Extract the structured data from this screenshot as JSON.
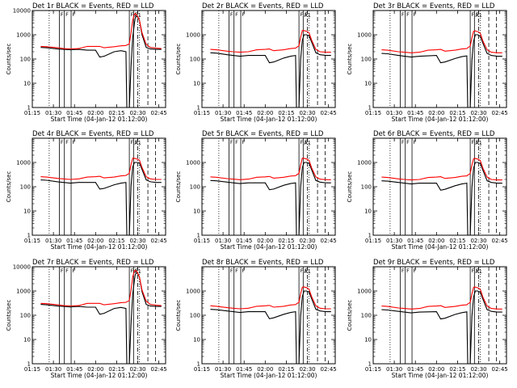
{
  "chart_data": {
    "type": "line",
    "layout": "3x3 grid",
    "common": {
      "yscale": "log",
      "ylim": [
        1,
        10000
      ],
      "xlim_hours": [
        1.25,
        2.83
      ],
      "x_ticks": [
        1.25,
        1.5,
        1.75,
        2.0,
        2.25,
        2.5,
        2.75
      ],
      "x_tick_labels": [
        "01:15",
        "01:30",
        "01:45",
        "02:00",
        "02:15",
        "02:30",
        "02:45"
      ],
      "y_ticks": [
        1,
        10,
        100,
        1000,
        10000
      ],
      "y_tick_labels_small": [
        "1",
        "10",
        "100",
        "1000"
      ],
      "y_tick_labels_big": [
        "1",
        "10",
        "100",
        "1000",
        "10000"
      ],
      "xlabel": "Start Time (04-Jan-12 01:12:00)",
      "ylabel": "Counts/sec",
      "flag_label": "F",
      "attenuator_label": "A1",
      "series_names": [
        "Events",
        "LLD"
      ],
      "series_colors": [
        "#000000",
        "#ff0000"
      ],
      "shared_x": [
        1.35,
        1.42,
        1.55,
        1.62,
        1.7,
        1.8,
        1.9,
        2.0,
        2.05,
        2.1,
        2.22,
        2.3,
        2.36,
        2.37,
        2.4,
        2.42,
        2.44,
        2.46,
        2.47,
        2.49,
        2.52,
        2.55,
        2.6,
        2.65,
        2.72,
        2.78
      ],
      "solid_markers": [
        1.57,
        1.63,
        1.71,
        2.4,
        2.45
      ],
      "dotted_markers": [
        1.45,
        2.52
      ],
      "dashed_markers": [
        2.62,
        2.71
      ],
      "dashdot_markers": [
        2.5
      ]
    },
    "panels": [
      {
        "title": "Det 1r BLACK = Events, RED = LLD",
        "big": true,
        "series": [
          {
            "name": "Events",
            "values": [
              300,
              290,
              260,
              250,
              240,
              250,
              230,
              230,
              120,
              130,
              200,
              220,
              200,
              0,
              1,
              50,
              800,
              3000,
              5000,
              6000,
              4000,
              1000,
              300,
              260,
              250,
              250
            ]
          },
          {
            "name": "LLD",
            "values": [
              330,
              320,
              290,
              270,
              260,
              270,
              330,
              330,
              330,
              290,
              320,
              350,
              360,
              380,
              420,
              1200,
              4000,
              7000,
              7500,
              6500,
              4000,
              1200,
              400,
              300,
              280,
              270
            ]
          }
        ]
      },
      {
        "title": "Det 2r BLACK = Events, RED = LLD",
        "big": false,
        "series": [
          {
            "name": "Events",
            "values": [
              180,
              175,
              150,
              140,
              130,
              140,
              140,
              140,
              70,
              75,
              110,
              130,
              140,
              0,
              1,
              100,
              600,
              1000,
              1000,
              1000,
              900,
              500,
              180,
              150,
              140,
              140
            ]
          },
          {
            "name": "LLD",
            "values": [
              250,
              240,
              210,
              200,
              190,
              200,
              240,
              250,
              260,
              220,
              240,
              270,
              280,
              300,
              350,
              800,
              1500,
              1500,
              1450,
              1400,
              1200,
              600,
              250,
              200,
              190,
              190
            ]
          }
        ]
      },
      {
        "title": "Det 3r BLACK = Events, RED = LLD",
        "big": false,
        "series": [
          {
            "name": "Events",
            "values": [
              170,
              165,
              140,
              130,
              120,
              130,
              135,
              140,
              70,
              75,
              105,
              125,
              135,
              0,
              1,
              90,
              550,
              1000,
              1000,
              1000,
              850,
              450,
              170,
              140,
              130,
              130
            ]
          },
          {
            "name": "LLD",
            "values": [
              240,
              230,
              200,
              190,
              180,
              190,
              230,
              240,
              250,
              210,
              230,
              260,
              270,
              290,
              340,
              750,
              1400,
              1450,
              1400,
              1350,
              1150,
              550,
              240,
              190,
              180,
              180
            ]
          }
        ]
      },
      {
        "title": "Det 4r BLACK = Events, RED = LLD",
        "big": false,
        "series": [
          {
            "name": "Events",
            "values": [
              190,
              185,
              160,
              150,
              140,
              150,
              150,
              150,
              80,
              85,
              120,
              140,
              150,
              0,
              1,
              110,
              650,
              1000,
              1000,
              1000,
              950,
              520,
              190,
              160,
              150,
              150
            ]
          },
          {
            "name": "LLD",
            "values": [
              260,
              250,
              220,
              210,
              200,
              210,
              250,
              260,
              270,
              230,
              250,
              280,
              290,
              310,
              360,
              820,
              1500,
              1500,
              1450,
              1400,
              1250,
              620,
              260,
              210,
              200,
              200
            ]
          }
        ]
      },
      {
        "title": "Det 5r BLACK = Events, RED = LLD",
        "big": false,
        "series": [
          {
            "name": "Events",
            "values": [
              180,
              175,
              155,
              145,
              135,
              145,
              145,
              145,
              75,
              80,
              115,
              135,
              145,
              0,
              1,
              100,
              620,
              1000,
              1000,
              1000,
              920,
              500,
              180,
              155,
              145,
              145
            ]
          },
          {
            "name": "LLD",
            "values": [
              255,
              245,
              215,
              205,
              195,
              205,
              245,
              255,
              265,
              225,
              245,
              275,
              285,
              305,
              355,
              800,
              1500,
              1500,
              1450,
              1400,
              1220,
              600,
              255,
              205,
              195,
              195
            ]
          }
        ]
      },
      {
        "title": "Det 6r BLACK = Events, RED = LLD",
        "big": false,
        "series": [
          {
            "name": "Events",
            "values": [
              175,
              170,
              150,
              140,
              130,
              140,
              140,
              140,
              72,
              78,
              110,
              130,
              140,
              0,
              1,
              95,
              600,
              1000,
              1000,
              1000,
              900,
              480,
              175,
              150,
              140,
              140
            ]
          },
          {
            "name": "LLD",
            "values": [
              250,
              240,
              210,
              200,
              190,
              200,
              240,
              250,
              260,
              220,
              240,
              270,
              280,
              300,
              350,
              780,
              1450,
              1480,
              1430,
              1380,
              1200,
              580,
              250,
              200,
              190,
              190
            ]
          }
        ]
      },
      {
        "title": "Det 7r BLACK = Events, RED = LLD",
        "big": true,
        "series": [
          {
            "name": "Events",
            "values": [
              280,
              270,
              240,
              230,
              220,
              230,
              215,
              215,
              110,
              120,
              190,
              210,
              190,
              0,
              1,
              45,
              750,
              2800,
              4800,
              5800,
              3800,
              950,
              280,
              240,
              230,
              230
            ]
          },
          {
            "name": "LLD",
            "values": [
              310,
              300,
              270,
              250,
              240,
              250,
              310,
              310,
              310,
              270,
              300,
              330,
              340,
              360,
              400,
              1100,
              3800,
              6800,
              7200,
              6300,
              3800,
              1100,
              380,
              280,
              260,
              250
            ]
          }
        ]
      },
      {
        "title": "Det 8r BLACK = Events, RED = LLD",
        "big": false,
        "series": [
          {
            "name": "Events",
            "values": [
              175,
              170,
              150,
              140,
              130,
              140,
              140,
              140,
              72,
              78,
              110,
              130,
              140,
              0,
              1,
              95,
              600,
              1000,
              1000,
              1000,
              900,
              480,
              175,
              150,
              140,
              140
            ]
          },
          {
            "name": "LLD",
            "values": [
              245,
              235,
              205,
              195,
              185,
              195,
              235,
              245,
              255,
              215,
              235,
              265,
              275,
              295,
              345,
              780,
              1450,
              1480,
              1430,
              1380,
              1180,
              580,
              245,
              195,
              185,
              185
            ]
          }
        ]
      },
      {
        "title": "Det 9r BLACK = Events, RED = LLD",
        "big": false,
        "series": [
          {
            "name": "Events",
            "values": [
              170,
              165,
              145,
              135,
              125,
              135,
              138,
              140,
              70,
              75,
              108,
              128,
              138,
              0,
              1,
              92,
              580,
              1000,
              1000,
              1000,
              880,
              460,
              170,
              145,
              135,
              135
            ]
          },
          {
            "name": "LLD",
            "values": [
              240,
              230,
              200,
              190,
              180,
              190,
              230,
              240,
              250,
              210,
              230,
              260,
              270,
              290,
              340,
              760,
              1420,
              1460,
              1410,
              1360,
              1160,
              560,
              240,
              190,
              180,
              180
            ]
          }
        ]
      }
    ]
  }
}
